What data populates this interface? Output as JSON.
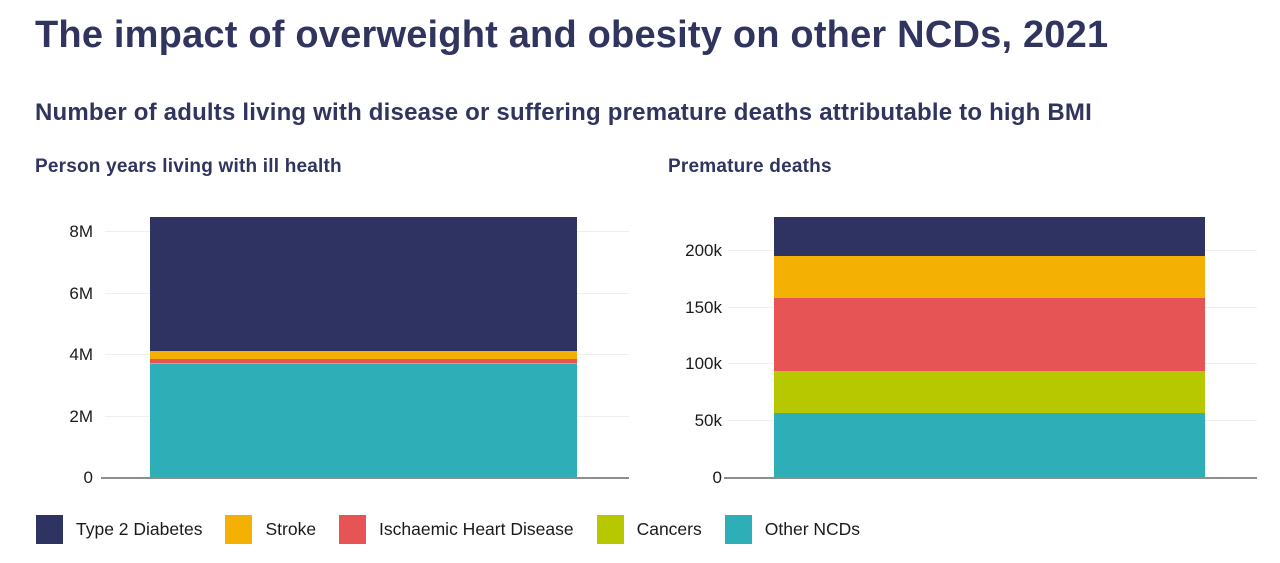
{
  "page": {
    "title": "The impact of overweight and obesity on other NCDs, 2021",
    "subtitle": "Number of adults living with disease or suffering premature deaths attributable to high BMI"
  },
  "colors": {
    "heading_navy": "#30345E",
    "tick_label": "#1A1A1A",
    "gridline": "#EFEFEF",
    "axis_line": "#8E8E8E",
    "background": "#FFFFFF",
    "type_2_diabetes": "#2F3361",
    "stroke": "#F4B104",
    "ischaemic_heart_disease": "#E65456",
    "cancers": "#B7C800",
    "other_ncds": "#2EAEB7"
  },
  "legend": {
    "items": [
      {
        "label": "Type 2 Diabetes",
        "color": "#2F3361"
      },
      {
        "label": "Stroke",
        "color": "#F4B104"
      },
      {
        "label": "Ischaemic Heart Disease",
        "color": "#E65456"
      },
      {
        "label": "Cancers",
        "color": "#B7C800"
      },
      {
        "label": "Other NCDs",
        "color": "#2EAEB7"
      }
    ]
  },
  "chart_data": [
    {
      "type": "bar",
      "stacked": true,
      "title": "Person years living with ill health",
      "ylabel": "",
      "axis_max": 8500000,
      "grid": true,
      "legend_position": "bottom-shared",
      "y_ticks": [
        {
          "value": 0,
          "label": "0"
        },
        {
          "value": 2000000,
          "label": "2M"
        },
        {
          "value": 4000000,
          "label": "4M"
        },
        {
          "value": 6000000,
          "label": "6M"
        },
        {
          "value": 8000000,
          "label": "8M"
        }
      ],
      "series": [
        {
          "name": "Other NCDs",
          "value": 3700000,
          "color": "#2EAEB7"
        },
        {
          "name": "Cancers",
          "value": 60000,
          "color": "#B7C800"
        },
        {
          "name": "Ischaemic Heart Disease",
          "value": 100000,
          "color": "#E65456"
        },
        {
          "name": "Stroke",
          "value": 270000,
          "color": "#F4B104"
        },
        {
          "name": "Type 2 Diabetes",
          "value": 4370000,
          "color": "#2F3361"
        }
      ],
      "total": 8500000
    },
    {
      "type": "bar",
      "stacked": true,
      "title": "Premature deaths",
      "ylabel": "",
      "axis_max": 229700,
      "grid": true,
      "legend_position": "bottom-shared",
      "y_ticks": [
        {
          "value": 0,
          "label": "0"
        },
        {
          "value": 50000,
          "label": "50k"
        },
        {
          "value": 100000,
          "label": "100k"
        },
        {
          "value": 150000,
          "label": "150k"
        },
        {
          "value": 200000,
          "label": "200k"
        }
      ],
      "series": [
        {
          "name": "Other NCDs",
          "value": 57000,
          "color": "#2EAEB7"
        },
        {
          "name": "Cancers",
          "value": 37500,
          "color": "#B7C800"
        },
        {
          "name": "Ischaemic Heart Disease",
          "value": 64000,
          "color": "#E65456"
        },
        {
          "name": "Stroke",
          "value": 37000,
          "color": "#F4B104"
        },
        {
          "name": "Type 2 Diabetes",
          "value": 34200,
          "color": "#2F3361"
        }
      ],
      "total": 229700
    }
  ]
}
